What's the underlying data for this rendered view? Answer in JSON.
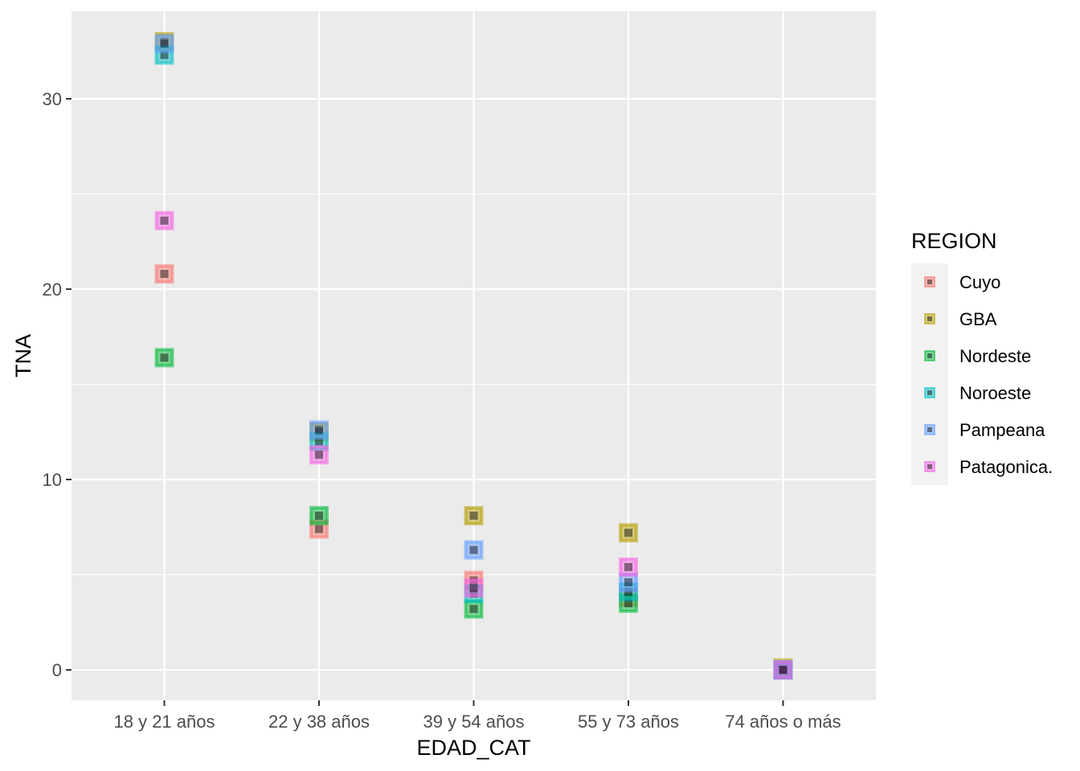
{
  "chart_data": {
    "type": "scatter",
    "xlabel": "EDAD_CAT",
    "ylabel": "TNA",
    "categories": [
      "18 y 21 años",
      "22 y 38 años",
      "39 y 54 años",
      "55 y 73 años",
      "74 años o más"
    ],
    "ylim": [
      -1.6,
      34.6
    ],
    "yticks": [
      0,
      10,
      20,
      30
    ],
    "grid": true,
    "legend": {
      "title": "REGION",
      "placement": "right",
      "entries": [
        "Cuyo",
        "GBA",
        "Nordeste",
        "Noroeste",
        "Pampeana",
        "Patagonica."
      ]
    },
    "colors": {
      "Cuyo": "#F8766D",
      "GBA": "#B79F00",
      "Nordeste": "#00BA38",
      "Noroeste": "#00BFC4",
      "Pampeana": "#619CFF",
      "Patagonica.": "#F564E3"
    },
    "series": [
      {
        "name": "Cuyo",
        "values": [
          20.8,
          7.4,
          4.7,
          3.8,
          0
        ]
      },
      {
        "name": "GBA",
        "values": [
          33.0,
          12.5,
          8.1,
          7.2,
          0.1
        ]
      },
      {
        "name": "Nordeste",
        "values": [
          16.4,
          8.1,
          3.2,
          3.5,
          0
        ]
      },
      {
        "name": "Noroeste",
        "values": [
          32.3,
          12.0,
          4.0,
          4.1,
          0
        ]
      },
      {
        "name": "Pampeana",
        "values": [
          32.9,
          12.6,
          6.3,
          4.6,
          0
        ]
      },
      {
        "name": "Patagonica.",
        "values": [
          23.6,
          11.3,
          4.3,
          5.4,
          0
        ]
      }
    ]
  }
}
